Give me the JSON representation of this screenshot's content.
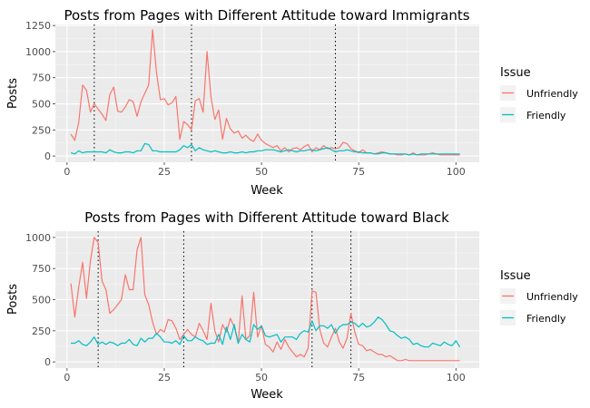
{
  "colors": {
    "panel_bg": "#EBEBEB",
    "grid_major": "#FFFFFF",
    "grid_minor": "#F5F5F5",
    "tick_text": "#4D4D4D",
    "vline": "#000000"
  },
  "chart_data": [
    {
      "type": "line",
      "title": "Posts from Pages with Different Attitude toward Immigrants",
      "xlabel": "Week",
      "ylabel": "Posts",
      "xlim": [
        -3,
        106
      ],
      "ylim": [
        -60,
        1260
      ],
      "x_ticks": [
        0,
        25,
        50,
        75,
        100
      ],
      "x_tick_labels": [
        "0",
        "25",
        "50",
        "75",
        "100"
      ],
      "y_ticks": [
        0,
        250,
        500,
        750,
        1000,
        1250
      ],
      "y_tick_labels": [
        "0",
        "250",
        "500",
        "750",
        "1000",
        "1250"
      ],
      "grid": true,
      "legend": {
        "title": "Issue",
        "position": "right"
      },
      "vlines": [
        7,
        32,
        69
      ],
      "series": [
        {
          "name": "Unfriendly",
          "color": "#F8766D",
          "x": [
            1,
            2,
            3,
            4,
            5,
            6,
            7,
            8,
            9,
            10,
            11,
            12,
            13,
            14,
            15,
            16,
            17,
            18,
            19,
            20,
            21,
            22,
            23,
            24,
            25,
            26,
            27,
            28,
            29,
            30,
            31,
            32,
            33,
            34,
            35,
            36,
            37,
            38,
            39,
            40,
            41,
            42,
            43,
            44,
            45,
            46,
            47,
            48,
            49,
            50,
            51,
            52,
            53,
            54,
            55,
            56,
            57,
            58,
            59,
            60,
            61,
            62,
            63,
            64,
            65,
            66,
            67,
            68,
            69,
            70,
            71,
            72,
            73,
            74,
            75,
            76,
            77,
            78,
            79,
            80,
            81,
            82,
            83,
            84,
            85,
            86,
            87,
            88,
            89,
            90,
            91,
            92,
            93,
            94,
            95,
            96,
            97,
            98,
            99,
            100,
            101
          ],
          "y": [
            210,
            150,
            320,
            680,
            630,
            420,
            500,
            450,
            400,
            340,
            590,
            660,
            430,
            420,
            470,
            540,
            520,
            380,
            520,
            600,
            680,
            1210,
            800,
            540,
            550,
            490,
            510,
            570,
            160,
            330,
            300,
            250,
            530,
            550,
            420,
            1000,
            570,
            350,
            440,
            160,
            360,
            260,
            220,
            240,
            170,
            200,
            160,
            140,
            210,
            150,
            120,
            100,
            80,
            100,
            50,
            80,
            40,
            70,
            80,
            60,
            90,
            110,
            40,
            80,
            60,
            100,
            70,
            80,
            70,
            80,
            130,
            120,
            70,
            50,
            30,
            60,
            30,
            30,
            20,
            30,
            40,
            30,
            20,
            20,
            10,
            10,
            20,
            10,
            30,
            10,
            10,
            10,
            20,
            30,
            20,
            10,
            10,
            10,
            10,
            10,
            10
          ]
        },
        {
          "name": "Friendly",
          "color": "#00BFC4",
          "x": [
            1,
            2,
            3,
            4,
            5,
            6,
            7,
            8,
            9,
            10,
            11,
            12,
            13,
            14,
            15,
            16,
            17,
            18,
            19,
            20,
            21,
            22,
            23,
            24,
            25,
            26,
            27,
            28,
            29,
            30,
            31,
            32,
            33,
            34,
            35,
            36,
            37,
            38,
            39,
            40,
            41,
            42,
            43,
            44,
            45,
            46,
            47,
            48,
            49,
            50,
            51,
            52,
            53,
            54,
            55,
            56,
            57,
            58,
            59,
            60,
            61,
            62,
            63,
            64,
            65,
            66,
            67,
            68,
            69,
            70,
            71,
            72,
            73,
            74,
            75,
            76,
            77,
            78,
            79,
            80,
            81,
            82,
            83,
            84,
            85,
            86,
            87,
            88,
            89,
            90,
            91,
            92,
            93,
            94,
            95,
            96,
            97,
            98,
            99,
            100,
            101
          ],
          "y": [
            30,
            20,
            50,
            30,
            40,
            40,
            40,
            40,
            40,
            30,
            60,
            40,
            30,
            30,
            40,
            40,
            30,
            50,
            50,
            120,
            110,
            50,
            50,
            40,
            40,
            40,
            40,
            40,
            60,
            100,
            80,
            110,
            50,
            80,
            60,
            50,
            40,
            50,
            40,
            30,
            30,
            40,
            30,
            30,
            40,
            30,
            40,
            40,
            50,
            50,
            60,
            60,
            60,
            50,
            40,
            50,
            60,
            50,
            40,
            50,
            50,
            60,
            60,
            50,
            60,
            70,
            80,
            60,
            40,
            50,
            50,
            60,
            50,
            40,
            40,
            30,
            30,
            30,
            20,
            20,
            30,
            30,
            20,
            20,
            20,
            20,
            20,
            10,
            20,
            10,
            20,
            20,
            20,
            20,
            20,
            20,
            20,
            20,
            20,
            20,
            20
          ]
        }
      ]
    },
    {
      "type": "line",
      "title": "Posts from Pages with Different Attitude toward Black",
      "xlabel": "Week",
      "ylabel": "Posts",
      "xlim": [
        -3,
        106
      ],
      "ylim": [
        -50,
        1050
      ],
      "x_ticks": [
        0,
        25,
        50,
        75,
        100
      ],
      "x_tick_labels": [
        "0",
        "25",
        "50",
        "75",
        "100"
      ],
      "y_ticks": [
        0,
        250,
        500,
        750,
        1000
      ],
      "y_tick_labels": [
        "0",
        "250",
        "500",
        "750",
        "1000"
      ],
      "grid": true,
      "legend": {
        "title": "Issue",
        "position": "right"
      },
      "vlines": [
        8,
        30,
        63,
        73
      ],
      "series": [
        {
          "name": "Unfriendly",
          "color": "#F8766D",
          "x": [
            1,
            2,
            3,
            4,
            5,
            6,
            7,
            8,
            9,
            10,
            11,
            12,
            13,
            14,
            15,
            16,
            17,
            18,
            19,
            20,
            21,
            22,
            23,
            24,
            25,
            26,
            27,
            28,
            29,
            30,
            31,
            32,
            33,
            34,
            35,
            36,
            37,
            38,
            39,
            40,
            41,
            42,
            43,
            44,
            45,
            46,
            47,
            48,
            49,
            50,
            51,
            52,
            53,
            54,
            55,
            56,
            57,
            58,
            59,
            60,
            61,
            62,
            63,
            64,
            65,
            66,
            67,
            68,
            69,
            70,
            71,
            72,
            73,
            74,
            75,
            76,
            77,
            78,
            79,
            80,
            81,
            82,
            83,
            84,
            85,
            86,
            87,
            88,
            89,
            90,
            91,
            92,
            93,
            94,
            95,
            96,
            97,
            98,
            99,
            100,
            101
          ],
          "y": [
            630,
            360,
            600,
            800,
            510,
            810,
            1000,
            960,
            650,
            580,
            390,
            420,
            460,
            500,
            700,
            580,
            580,
            900,
            1000,
            540,
            460,
            320,
            220,
            260,
            240,
            340,
            330,
            270,
            180,
            220,
            260,
            220,
            200,
            310,
            250,
            180,
            470,
            250,
            160,
            300,
            240,
            350,
            280,
            150,
            530,
            180,
            210,
            560,
            200,
            290,
            140,
            120,
            80,
            160,
            100,
            180,
            120,
            80,
            40,
            60,
            40,
            110,
            570,
            560,
            260,
            150,
            120,
            200,
            270,
            160,
            110,
            190,
            390,
            240,
            140,
            130,
            90,
            100,
            80,
            60,
            60,
            40,
            50,
            30,
            10,
            10,
            20,
            10,
            10,
            10,
            10,
            10,
            10,
            10,
            10,
            10,
            10,
            10,
            10,
            10,
            10
          ]
        },
        {
          "name": "Friendly",
          "color": "#00BFC4",
          "x": [
            1,
            2,
            3,
            4,
            5,
            6,
            7,
            8,
            9,
            10,
            11,
            12,
            13,
            14,
            15,
            16,
            17,
            18,
            19,
            20,
            21,
            22,
            23,
            24,
            25,
            26,
            27,
            28,
            29,
            30,
            31,
            32,
            33,
            34,
            35,
            36,
            37,
            38,
            39,
            40,
            41,
            42,
            43,
            44,
            45,
            46,
            47,
            48,
            49,
            50,
            51,
            52,
            53,
            54,
            55,
            56,
            57,
            58,
            59,
            60,
            61,
            62,
            63,
            64,
            65,
            66,
            67,
            68,
            69,
            70,
            71,
            72,
            73,
            74,
            75,
            76,
            77,
            78,
            79,
            80,
            81,
            82,
            83,
            84,
            85,
            86,
            87,
            88,
            89,
            90,
            91,
            92,
            93,
            94,
            95,
            96,
            97,
            98,
            99,
            100,
            101
          ],
          "y": [
            150,
            150,
            170,
            140,
            130,
            160,
            200,
            140,
            160,
            140,
            160,
            150,
            130,
            150,
            150,
            180,
            140,
            130,
            190,
            160,
            190,
            190,
            230,
            200,
            160,
            160,
            150,
            170,
            140,
            210,
            170,
            170,
            200,
            180,
            170,
            140,
            150,
            150,
            220,
            140,
            280,
            180,
            300,
            150,
            220,
            180,
            160,
            300,
            260,
            290,
            210,
            200,
            210,
            220,
            160,
            200,
            200,
            200,
            180,
            230,
            250,
            240,
            330,
            250,
            290,
            290,
            270,
            300,
            230,
            280,
            300,
            300,
            320,
            310,
            280,
            310,
            280,
            290,
            320,
            360,
            340,
            300,
            250,
            240,
            210,
            190,
            200,
            180,
            140,
            150,
            130,
            120,
            120,
            150,
            140,
            130,
            160,
            140,
            130,
            170,
            120
          ]
        }
      ]
    }
  ]
}
